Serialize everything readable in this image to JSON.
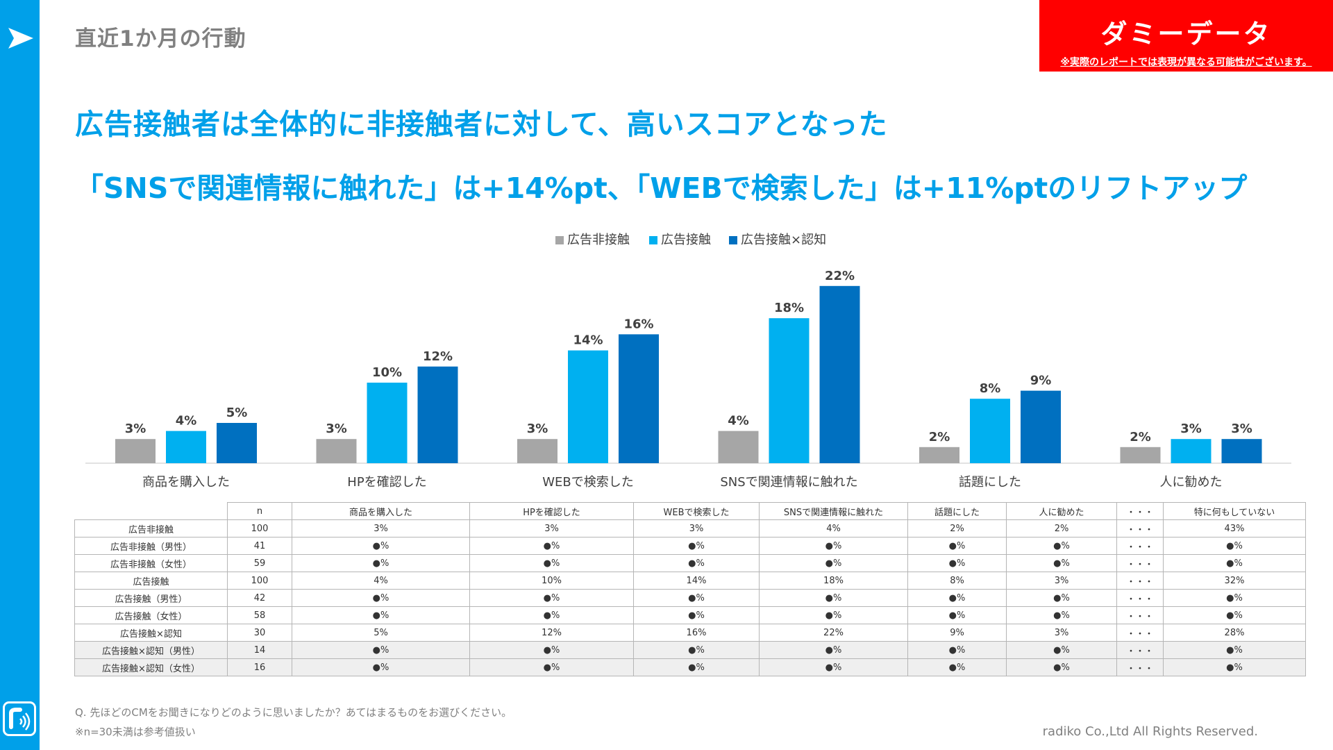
{
  "header": {
    "section_title": "直近1か月の行動",
    "dummy_label": "ダミーデータ",
    "dummy_note": "※実際のレポートでは表現が異なる可能性がございます。"
  },
  "headline": {
    "line1": "広告接触者は全体的に非接触者に対して、高いスコアとなった",
    "line2": "「SNSで関連情報に触れた」は+14%pt、「WEBで検索した」は+11%ptのリフトアップ"
  },
  "colors": {
    "accent": "#00a0e9",
    "gray": "#a6a6a6",
    "light_blue": "#00b0f0",
    "dark_blue": "#0070c0",
    "red": "#ff0000"
  },
  "chart_data": {
    "type": "bar",
    "categories": [
      "商品を購入した",
      "HPを確認した",
      "WEBで検索した",
      "SNSで関連情報に触れた",
      "話題にした",
      "人に勧めた"
    ],
    "series": [
      {
        "name": "広告非接触",
        "values": [
          3,
          3,
          3,
          4,
          2,
          2
        ],
        "labels": [
          "3%",
          "3%",
          "3%",
          "4%",
          "2%",
          "2%"
        ]
      },
      {
        "name": "広告接触",
        "values": [
          4,
          10,
          14,
          18,
          8,
          3
        ],
        "labels": [
          "4%",
          "10%",
          "14%",
          "18%",
          "8%",
          "3%"
        ]
      },
      {
        "name": "広告接触×認知",
        "values": [
          5,
          12,
          16,
          22,
          9,
          3
        ],
        "labels": [
          "5%",
          "12%",
          "16%",
          "22%",
          "9%",
          "3%"
        ]
      }
    ],
    "unit": "%",
    "legend_position": "top-center",
    "grid": false
  },
  "table": {
    "headers": [
      "n",
      "商品を購入した",
      "HPを確認した",
      "WEBで検索した",
      "SNSで関連情報に触れた",
      "話題にした",
      "人に勧めた",
      "・・・",
      "特に何もしていない"
    ],
    "rows": [
      {
        "label": "広告非接触",
        "n": "100",
        "cells": [
          "3%",
          "3%",
          "3%",
          "4%",
          "2%",
          "2%",
          "・・・",
          "43%"
        ]
      },
      {
        "label": "広告非接触（男性）",
        "n": "41",
        "cells": [
          "●%",
          "●%",
          "●%",
          "●%",
          "●%",
          "●%",
          "・・・",
          "●%"
        ]
      },
      {
        "label": "広告非接触（女性）",
        "n": "59",
        "cells": [
          "●%",
          "●%",
          "●%",
          "●%",
          "●%",
          "●%",
          "・・・",
          "●%"
        ]
      },
      {
        "label": "広告接触",
        "n": "100",
        "cells": [
          "4%",
          "10%",
          "14%",
          "18%",
          "8%",
          "3%",
          "・・・",
          "32%"
        ]
      },
      {
        "label": "広告接触（男性）",
        "n": "42",
        "cells": [
          "●%",
          "●%",
          "●%",
          "●%",
          "●%",
          "●%",
          "・・・",
          "●%"
        ]
      },
      {
        "label": "広告接触（女性）",
        "n": "58",
        "cells": [
          "●%",
          "●%",
          "●%",
          "●%",
          "●%",
          "●%",
          "・・・",
          "●%"
        ]
      },
      {
        "label": "広告接触×認知",
        "n": "30",
        "cells": [
          "5%",
          "12%",
          "16%",
          "22%",
          "9%",
          "3%",
          "・・・",
          "28%"
        ]
      },
      {
        "label": "広告接触×認知（男性）",
        "n": "14",
        "cells": [
          "●%",
          "●%",
          "●%",
          "●%",
          "●%",
          "●%",
          "・・・",
          "●%"
        ]
      },
      {
        "label": "広告接触×認知（女性）",
        "n": "16",
        "cells": [
          "●%",
          "●%",
          "●%",
          "●%",
          "●%",
          "●%",
          "・・・",
          "●%"
        ]
      }
    ]
  },
  "footer": {
    "question": "Q. 先ほどのCMをお聞きになりどのように思いましたか？あてはまるものをお選びください。",
    "note": "※n=30未満は参考値扱い",
    "copyright": "radiko Co.,Ltd All Rights Reserved."
  }
}
